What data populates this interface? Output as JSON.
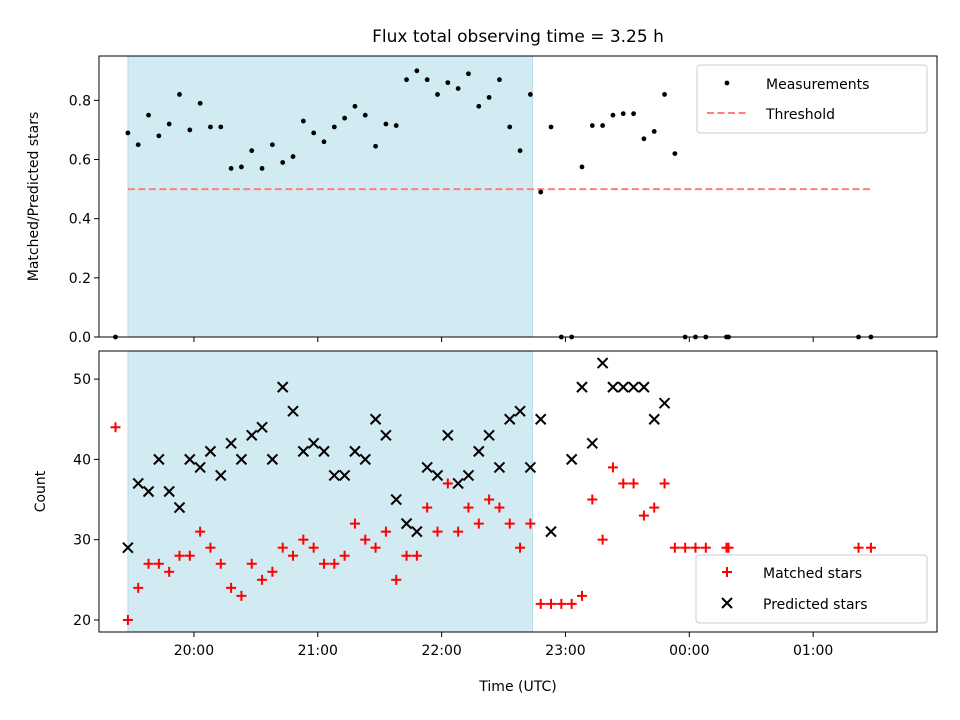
{
  "figure": {
    "title": "Flux total observing time = 3.25 h"
  },
  "colors": {
    "shade": "#add8e6",
    "threshold": "#ff7f7f",
    "matched": "#ff0000",
    "predicted": "#000000",
    "measurement": "#000000"
  },
  "chart_data": [
    {
      "type": "scatter",
      "ylabel": "Matched/Predicted stars",
      "ylim": [
        0,
        0.95
      ],
      "yticks": [
        "0.0",
        "0.2",
        "0.4",
        "0.6",
        "0.8"
      ],
      "ytick_values": [
        0,
        0.2,
        0.4,
        0.6,
        0.8
      ],
      "xlim": [
        "19:14",
        "02:00"
      ],
      "shaded_interval": [
        "19:28",
        "22:44"
      ],
      "legend": {
        "placement": "upper right",
        "entries": [
          "Measurements",
          "Threshold"
        ]
      },
      "threshold": {
        "name": "Threshold",
        "value": 0.5,
        "x_range": [
          "19:28",
          "01:28"
        ],
        "style": "dashed"
      },
      "series": [
        {
          "name": "Measurements",
          "marker": "dot",
          "x": [
            "19:22",
            "19:28",
            "19:33",
            "19:38",
            "19:43",
            "19:48",
            "19:53",
            "19:58",
            "20:03",
            "20:08",
            "20:13",
            "20:18",
            "20:23",
            "20:28",
            "20:33",
            "20:38",
            "20:43",
            "20:48",
            "20:53",
            "20:58",
            "21:03",
            "21:08",
            "21:13",
            "21:18",
            "21:23",
            "21:28",
            "21:33",
            "21:38",
            "21:43",
            "21:48",
            "21:53",
            "21:58",
            "22:03",
            "22:08",
            "22:13",
            "22:18",
            "22:23",
            "22:28",
            "22:33",
            "22:38",
            "22:43",
            "22:48",
            "22:53",
            "22:58",
            "23:03",
            "23:08",
            "23:13",
            "23:18",
            "23:23",
            "23:28",
            "23:33",
            "23:38",
            "23:43",
            "23:48",
            "23:53",
            "23:58",
            "00:03",
            "00:08",
            "00:18",
            "00:19",
            "01:22",
            "01:28"
          ],
          "y": [
            0.0,
            0.69,
            0.65,
            0.75,
            0.68,
            0.72,
            0.82,
            0.7,
            0.79,
            0.71,
            0.71,
            0.57,
            0.575,
            0.63,
            0.57,
            0.65,
            0.59,
            0.61,
            0.73,
            0.69,
            0.66,
            0.71,
            0.74,
            0.78,
            0.75,
            0.645,
            0.72,
            0.715,
            0.87,
            0.9,
            0.87,
            0.82,
            0.86,
            0.84,
            0.89,
            0.78,
            0.81,
            0.87,
            0.71,
            0.63,
            0.82,
            0.49,
            0.71,
            0.0,
            0.0,
            0.575,
            0.715,
            0.715,
            0.75,
            0.755,
            0.755,
            0.67,
            0.695,
            0.82,
            0.62,
            0.0,
            0.0,
            0.0,
            0.0,
            0.0,
            0.0,
            0.0
          ]
        }
      ]
    },
    {
      "type": "scatter",
      "xlabel": "Time (UTC)",
      "ylabel": "Count",
      "ylim": [
        18.5,
        53.5
      ],
      "yticks": [
        "20",
        "30",
        "40",
        "50"
      ],
      "ytick_values": [
        20,
        30,
        40,
        50
      ],
      "xlim": [
        "19:14",
        "02:00"
      ],
      "xticks": [
        "20:00",
        "21:00",
        "22:00",
        "23:00",
        "00:00",
        "01:00"
      ],
      "shaded_interval": [
        "19:28",
        "22:44"
      ],
      "legend": {
        "placement": "lower right",
        "entries": [
          "Matched stars",
          "Predicted stars"
        ]
      },
      "series": [
        {
          "name": "Matched stars",
          "marker": "plus",
          "x": [
            "19:22",
            "19:28",
            "19:33",
            "19:38",
            "19:43",
            "19:48",
            "19:53",
            "19:58",
            "20:03",
            "20:08",
            "20:13",
            "20:18",
            "20:23",
            "20:28",
            "20:33",
            "20:38",
            "20:43",
            "20:48",
            "20:53",
            "20:58",
            "21:03",
            "21:08",
            "21:13",
            "21:18",
            "21:23",
            "21:28",
            "21:33",
            "21:38",
            "21:43",
            "21:48",
            "21:53",
            "21:58",
            "22:03",
            "22:08",
            "22:13",
            "22:18",
            "22:23",
            "22:28",
            "22:33",
            "22:38",
            "22:43",
            "22:48",
            "22:53",
            "22:58",
            "23:03",
            "23:08",
            "23:13",
            "23:18",
            "23:23",
            "23:28",
            "23:33",
            "23:38",
            "23:43",
            "23:48",
            "23:53",
            "23:58",
            "00:03",
            "00:08",
            "00:18",
            "00:19",
            "01:22",
            "01:28"
          ],
          "y": [
            44,
            20,
            24,
            27,
            27,
            26,
            28,
            28,
            31,
            29,
            27,
            24,
            23,
            27,
            25,
            26,
            29,
            28,
            30,
            29,
            27,
            27,
            28,
            32,
            30,
            29,
            31,
            25,
            28,
            28,
            34,
            31,
            37,
            31,
            34,
            32,
            35,
            34,
            32,
            29,
            32,
            22,
            22,
            22,
            22,
            23,
            35,
            30,
            39,
            37,
            37,
            33,
            34,
            37,
            29,
            29,
            29,
            29,
            29,
            29,
            29,
            29
          ]
        },
        {
          "name": "Predicted stars",
          "marker": "x",
          "x": [
            "19:28",
            "19:33",
            "19:38",
            "19:43",
            "19:48",
            "19:53",
            "19:58",
            "20:03",
            "20:08",
            "20:13",
            "20:18",
            "20:23",
            "20:28",
            "20:33",
            "20:38",
            "20:43",
            "20:48",
            "20:53",
            "20:58",
            "21:03",
            "21:08",
            "21:13",
            "21:18",
            "21:23",
            "21:28",
            "21:33",
            "21:38",
            "21:43",
            "21:48",
            "21:53",
            "21:58",
            "22:03",
            "22:08",
            "22:13",
            "22:18",
            "22:23",
            "22:28",
            "22:33",
            "22:38",
            "22:43",
            "22:48",
            "22:53",
            "23:03",
            "23:08",
            "23:13",
            "23:18",
            "23:23",
            "23:28",
            "23:33",
            "23:38",
            "23:43",
            "23:48"
          ],
          "y": [
            29,
            37,
            36,
            40,
            36,
            34,
            40,
            39,
            41,
            38,
            42,
            40,
            43,
            44,
            40,
            49,
            46,
            41,
            42,
            41,
            38,
            38,
            41,
            40,
            45,
            43,
            35,
            32,
            31,
            39,
            38,
            43,
            37,
            38,
            41,
            43,
            39,
            45,
            46,
            39,
            45,
            31,
            40,
            49,
            42,
            52,
            49,
            49,
            49,
            49,
            45,
            47
          ]
        }
      ]
    }
  ]
}
